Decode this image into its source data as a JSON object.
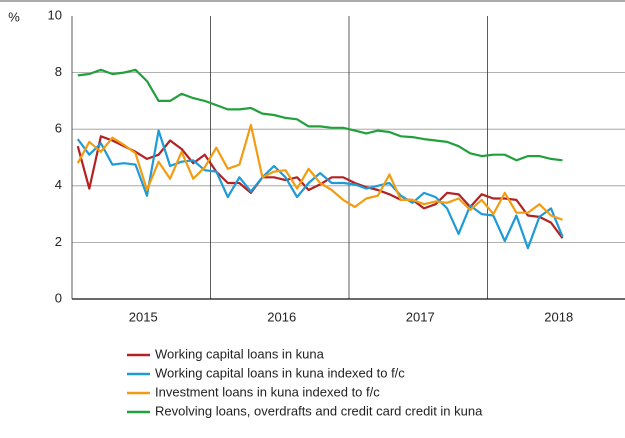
{
  "chart_data": {
    "type": "line",
    "ylabel": "%",
    "year_labels": [
      "2015",
      "2016",
      "2017",
      "2018"
    ],
    "ylim": [
      0,
      10
    ],
    "yticks": [
      0,
      2,
      4,
      6,
      8,
      10
    ],
    "grid": true,
    "series": [
      {
        "name": "Working capital loans in kuna",
        "color": "#b22222",
        "values": [
          5.4,
          3.9,
          5.75,
          5.6,
          5.4,
          5.2,
          4.95,
          5.1,
          5.6,
          5.3,
          4.8,
          5.1,
          4.5,
          4.1,
          4.1,
          3.75,
          4.3,
          4.3,
          4.2,
          4.3,
          3.85,
          4.05,
          4.3,
          4.3,
          4.1,
          3.95,
          3.85,
          3.7,
          3.5,
          3.5,
          3.2,
          3.35,
          3.75,
          3.7,
          3.25,
          3.7,
          3.55,
          3.55,
          3.5,
          2.95,
          2.9,
          2.7,
          2.15
        ]
      },
      {
        "name": "Working capital loans in kuna indexed to f/c",
        "color": "#1e9bd7",
        "values": [
          5.65,
          5.1,
          5.5,
          4.75,
          4.8,
          4.75,
          3.65,
          5.95,
          4.7,
          4.85,
          4.9,
          4.55,
          4.5,
          3.6,
          4.3,
          3.8,
          4.3,
          4.7,
          4.3,
          3.6,
          4.1,
          4.45,
          4.1,
          4.1,
          4.05,
          3.9,
          4.0,
          4.1,
          3.65,
          3.4,
          3.75,
          3.6,
          3.2,
          2.3,
          3.3,
          3.0,
          2.95,
          2.05,
          2.95,
          1.8,
          2.9,
          3.2,
          2.2
        ]
      },
      {
        "name": "Investment loans in kuna indexed to f/c",
        "color": "#f39c12",
        "values": [
          4.8,
          5.55,
          5.2,
          5.7,
          5.45,
          5.15,
          3.85,
          4.85,
          4.25,
          5.2,
          4.25,
          4.65,
          5.35,
          4.6,
          4.75,
          6.15,
          4.3,
          4.5,
          4.55,
          3.9,
          4.6,
          4.1,
          3.85,
          3.5,
          3.25,
          3.55,
          3.65,
          4.4,
          3.5,
          3.5,
          3.35,
          3.45,
          3.4,
          3.55,
          3.15,
          3.5,
          3.0,
          3.75,
          3.05,
          3.05,
          3.35,
          2.95,
          2.8
        ]
      },
      {
        "name": "Revolving loans, overdrafts and credit card credit in kuna",
        "color": "#22a03c",
        "values": [
          7.9,
          7.95,
          8.1,
          7.95,
          8.0,
          8.1,
          7.7,
          7.0,
          7.0,
          7.25,
          7.1,
          7.0,
          6.85,
          6.7,
          6.7,
          6.75,
          6.55,
          6.5,
          6.4,
          6.35,
          6.1,
          6.1,
          6.05,
          6.05,
          5.95,
          5.85,
          5.95,
          5.9,
          5.75,
          5.72,
          5.65,
          5.6,
          5.55,
          5.4,
          5.15,
          5.05,
          5.1,
          5.1,
          4.9,
          5.05,
          5.05,
          4.95,
          4.9
        ]
      }
    ]
  }
}
